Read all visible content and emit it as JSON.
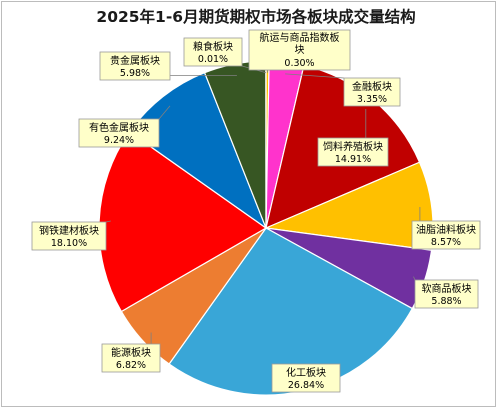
{
  "chart_data": {
    "type": "pie",
    "title": "2025年1-6月期货期权市场各板块成交量结构",
    "slices": [
      {
        "name": "航运与商品指数板块",
        "value": 0.3,
        "label": "0.30%",
        "color": "#ffc000"
      },
      {
        "name": "金融板块",
        "value": 3.35,
        "label": "3.35%",
        "color": "#ff33cc"
      },
      {
        "name": "饲料养殖板块",
        "value": 14.91,
        "label": "14.91%",
        "color": "#c00000"
      },
      {
        "name": "油脂油料板块",
        "value": 8.57,
        "label": "8.57%",
        "color": "#ffc000"
      },
      {
        "name": "软商品板块",
        "value": 5.88,
        "label": "5.88%",
        "color": "#7030a0"
      },
      {
        "name": "化工板块",
        "value": 26.84,
        "label": "26.84%",
        "color": "#39a6d7"
      },
      {
        "name": "能源板块",
        "value": 6.82,
        "label": "6.82%",
        "color": "#ed7d31"
      },
      {
        "name": "钢铁建材板块",
        "value": 18.1,
        "label": "18.10%",
        "color": "#ff0000"
      },
      {
        "name": "有色金属板块",
        "value": 9.24,
        "label": "9.24%",
        "color": "#0070c0"
      },
      {
        "name": "贵金属板块",
        "value": 5.98,
        "label": "5.98%",
        "color": "#375623"
      },
      {
        "name": "粮食板块",
        "value": 0.01,
        "label": "0.01%",
        "color": "#a5a5a5"
      }
    ],
    "label_style": "callout boxes with leader lines, pale yellow background"
  }
}
